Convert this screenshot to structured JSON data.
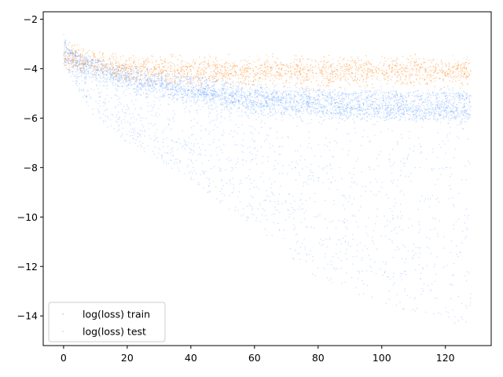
{
  "chart_data": {
    "type": "scatter",
    "title": "",
    "xlabel": "",
    "ylabel": "",
    "xlim": [
      -6.4,
      134.4
    ],
    "ylim": [
      -15.2,
      -1.7
    ],
    "x_ticks": [
      0,
      20,
      40,
      60,
      80,
      100,
      120
    ],
    "y_ticks": [
      -2,
      -4,
      -6,
      -8,
      -10,
      -12,
      -14
    ],
    "x_tick_labels": [
      "0",
      "20",
      "40",
      "60",
      "80",
      "100",
      "120"
    ],
    "y_tick_labels": [
      "−2",
      "−4",
      "−6",
      "−8",
      "−10",
      "−12",
      "−14"
    ],
    "grid": false,
    "legend_position": "lower-left",
    "series": [
      {
        "name": "log(loss) train",
        "color": "#1f77ff",
        "marker": "point",
        "alpha": 0.15,
        "x_range": [
          0,
          128
        ],
        "upper_envelope": [
          [
            0,
            -2.5
          ],
          [
            1,
            -3.1
          ],
          [
            5,
            -3.4
          ],
          [
            10,
            -3.6
          ],
          [
            20,
            -3.9
          ],
          [
            40,
            -4.3
          ],
          [
            60,
            -4.6
          ],
          [
            80,
            -4.8
          ],
          [
            100,
            -4.9
          ],
          [
            128,
            -5.0
          ]
        ],
        "dense_band": [
          [
            0,
            -3.3
          ],
          [
            5,
            -3.8
          ],
          [
            10,
            -4.1
          ],
          [
            20,
            -4.5
          ],
          [
            40,
            -5.0
          ],
          [
            60,
            -5.4
          ],
          [
            80,
            -5.6
          ],
          [
            100,
            -5.7
          ],
          [
            128,
            -5.8
          ]
        ],
        "secondary_band": [
          [
            60,
            -5.1
          ],
          [
            80,
            -5.1
          ],
          [
            100,
            -5.1
          ],
          [
            128,
            -5.1
          ]
        ],
        "lower_envelope": [
          [
            0,
            -3.8
          ],
          [
            5,
            -5.0
          ],
          [
            10,
            -6.0
          ],
          [
            20,
            -7.0
          ],
          [
            40,
            -8.5
          ],
          [
            60,
            -10.5
          ],
          [
            80,
            -12.5
          ],
          [
            100,
            -13.5
          ],
          [
            128,
            -14.5
          ]
        ]
      },
      {
        "name": "log(loss) test",
        "color": "#ff7f0e",
        "marker": "point",
        "alpha": 0.15,
        "x_range": [
          0,
          128
        ],
        "upper_envelope": [
          [
            0,
            -2.8
          ],
          [
            10,
            -3.3
          ],
          [
            20,
            -3.4
          ],
          [
            40,
            -3.4
          ],
          [
            60,
            -3.4
          ],
          [
            80,
            -3.4
          ],
          [
            100,
            -3.4
          ],
          [
            128,
            -3.4
          ]
        ],
        "center": [
          [
            0,
            -3.5
          ],
          [
            10,
            -3.8
          ],
          [
            20,
            -4.0
          ],
          [
            40,
            -4.1
          ],
          [
            60,
            -4.1
          ],
          [
            80,
            -4.1
          ],
          [
            100,
            -4.1
          ],
          [
            128,
            -4.1
          ]
        ],
        "lower_envelope": [
          [
            0,
            -4.0
          ],
          [
            10,
            -4.4
          ],
          [
            20,
            -4.6
          ],
          [
            40,
            -4.8
          ],
          [
            60,
            -4.9
          ],
          [
            80,
            -4.9
          ],
          [
            100,
            -4.9
          ],
          [
            128,
            -4.9
          ]
        ]
      }
    ]
  }
}
